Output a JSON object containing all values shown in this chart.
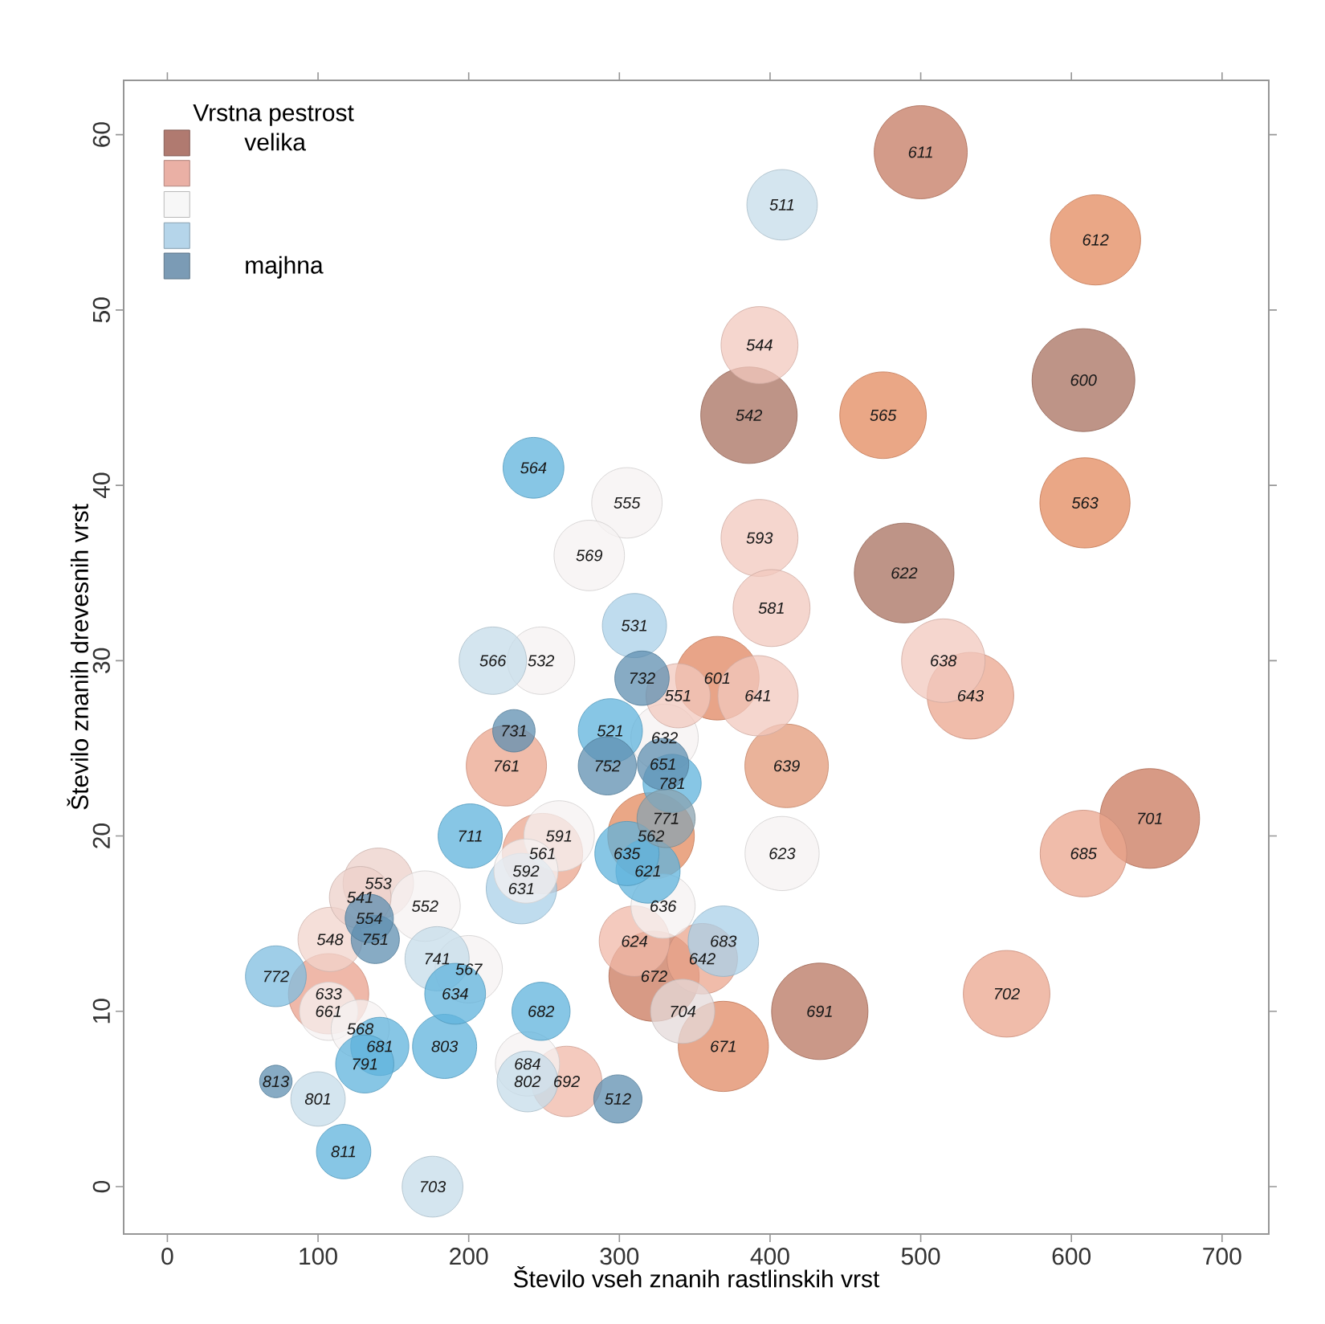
{
  "chart_data": {
    "type": "bubble",
    "xlabel": "Število vseh znanih rastlinskih vrst",
    "ylabel": "Število znanih drevesnih vrst",
    "legend_title": "Vrstna pestrost",
    "legend": "top left",
    "xlim": [
      -29,
      731
    ],
    "ylim": [
      -2.7,
      63.1
    ],
    "xticks": [
      0,
      100,
      200,
      300,
      400,
      500,
      600,
      700
    ],
    "yticks": [
      0,
      10,
      20,
      30,
      40,
      50,
      60
    ],
    "series": [
      {
        "name": "velika",
        "color": "#b07a70",
        "x": [
          500,
          616,
          386,
          475,
          608,
          609,
          489,
          365,
          652,
          433,
          369,
          323,
          321,
          411
        ],
        "values": [
          59,
          54,
          44,
          44,
          46,
          39,
          35,
          29,
          21,
          10,
          8,
          12,
          20,
          24
        ],
        "sizes": [
          0.82,
          0.77,
          0.88,
          0.71,
          1.0,
          0.77,
          0.94,
          0.66,
          0.94,
          0.88,
          0.77,
          0.77,
          0.71,
          0.66
        ],
        "colors": [
          "#c47a62",
          "#e38a5e",
          "#a8705f",
          "#e38a5e",
          "#a8705f",
          "#e38a5e",
          "#a8705f",
          "#e08660",
          "#c9785c",
          "#b87560",
          "#e08a64",
          "#c9785c",
          "#e38a5e",
          "#e39a78"
        ]
      },
      {
        "color": "#eab0a5",
        "x": [
          533,
          608,
          557,
          225,
          249,
          107,
          355,
          310,
          265,
          393,
          393,
          401,
          515,
          392,
          140,
          108,
          128,
          339
        ],
        "values": [
          28,
          19,
          11,
          24,
          19,
          11,
          13,
          14,
          6,
          48,
          37,
          33,
          30,
          28,
          17.3,
          14.1,
          16.5,
          28
        ],
        "sizes": [
          0.71,
          0.71,
          0.71,
          0.61,
          0.61,
          0.61,
          0.47,
          0.47,
          0.47,
          0.56,
          0.56,
          0.56,
          0.66,
          0.61,
          0.47,
          0.39,
          0.36,
          0.39
        ],
        "colors": [
          "#eba58e",
          "#eba58e",
          "#eba58e",
          "#eba58e",
          "#eba58e",
          "#e9a08c",
          "#eba58e",
          "#f0b8a8",
          "#f0b8a8",
          "#f2c8bd",
          "#f2c8bd",
          "#f2c8bd",
          "#f2c8bd",
          "#f2c8bd",
          "#ecd0ca",
          "#f2d4cc",
          "#ecd0ca",
          "#f2c8bd"
        ]
      },
      {
        "color": "#f7f7f7",
        "x": [
          305,
          280,
          248,
          330,
          408,
          329,
          171,
          200,
          260,
          238,
          107,
          128,
          239,
          342
        ],
        "values": [
          39,
          36,
          30,
          25.6,
          19,
          16,
          16,
          12.4,
          20,
          18,
          10,
          9,
          7,
          10
        ],
        "sizes": [
          0.47,
          0.47,
          0.43,
          0.43,
          0.52,
          0.39,
          0.47,
          0.43,
          0.47,
          0.39,
          0.32,
          0.32,
          0.39,
          0.39
        ],
        "colors": [
          "#f5f2f2",
          "#f5f2f2",
          "#f5f2f2",
          "#f5f2f2",
          "#f5f2f2",
          "#f5f2f2",
          "#f5f2f2",
          "#f5f2f2",
          "#f5f2f2",
          "#f5f2f2",
          "#f5f2f2",
          "#f5f2f2",
          "#f5f2f2",
          "#e4dada"
        ]
      },
      {
        "color": "#b5d5ea",
        "x": [
          408,
          216,
          310,
          369,
          179,
          100,
          176,
          235,
          239,
          243,
          294,
          201,
          319,
          305,
          191,
          184,
          248,
          72,
          141,
          131,
          117,
          335
        ],
        "values": [
          56,
          30,
          32,
          14,
          13,
          5,
          0,
          17,
          6,
          41,
          26,
          20,
          18,
          19,
          11,
          8,
          10,
          12,
          8,
          7,
          2,
          23
        ],
        "sizes": [
          0.47,
          0.43,
          0.39,
          0.47,
          0.39,
          0.28,
          0.35,
          0.47,
          0.35,
          0.35,
          0.39,
          0.39,
          0.39,
          0.39,
          0.35,
          0.39,
          0.32,
          0.35,
          0.32,
          0.32,
          0.28,
          0.32
        ],
        "colors": [
          "#c6dcea",
          "#c6dcea",
          "#a9d0e8",
          "#a9d0e8",
          "#c6dcea",
          "#c6dcea",
          "#c6dcea",
          "#a9d0e8",
          "#c6dcea",
          "#5fb3dc",
          "#5fb3dc",
          "#5fb3dc",
          "#5fb3dc",
          "#5fb3dc",
          "#5fb3dc",
          "#5fb3dc",
          "#5fb3dc",
          "#7fbde0",
          "#5fb3dc",
          "#5fb3dc",
          "#5fb3dc",
          "#5fb3dc"
        ]
      },
      {
        "name": "majhna",
        "color": "#7b9bb5",
        "x": [
          230,
          292,
          315,
          138,
          72,
          299,
          331,
          329,
          134
        ],
        "values": [
          26,
          24,
          29,
          14.1,
          6,
          5,
          21,
          24.1,
          15.3
        ],
        "sizes": [
          0.17,
          0.32,
          0.28,
          0.22,
          0.1,
          0.22,
          0.32,
          0.25,
          0.22
        ],
        "colors": [
          "#5f8fb0",
          "#5f8fb0",
          "#5f8fb0",
          "#5f8fb0",
          "#5f8fb0",
          "#5f8fb0",
          "#8aa3b0",
          "#5f8fb0",
          "#5f8fb0"
        ]
      }
    ],
    "annotations": [
      {
        "text": "611",
        "x": 500,
        "y": 59
      },
      {
        "text": "612",
        "x": 616,
        "y": 54
      },
      {
        "text": "542",
        "x": 386,
        "y": 44
      },
      {
        "text": "565",
        "x": 475,
        "y": 44
      },
      {
        "text": "600",
        "x": 608,
        "y": 46
      },
      {
        "text": "563",
        "x": 609,
        "y": 39
      },
      {
        "text": "622",
        "x": 489,
        "y": 35
      },
      {
        "text": "601",
        "x": 365,
        "y": 29
      },
      {
        "text": "701",
        "x": 652,
        "y": 21
      },
      {
        "text": "691",
        "x": 433,
        "y": 10
      },
      {
        "text": "671",
        "x": 369,
        "y": 8
      },
      {
        "text": "672",
        "x": 323,
        "y": 12
      },
      {
        "text": "562",
        "x": 321,
        "y": 20
      },
      {
        "text": "639",
        "x": 411,
        "y": 24
      },
      {
        "text": "643",
        "x": 533,
        "y": 28
      },
      {
        "text": "685",
        "x": 608,
        "y": 19
      },
      {
        "text": "702",
        "x": 557,
        "y": 11
      },
      {
        "text": "761",
        "x": 225,
        "y": 24
      },
      {
        "text": "561",
        "x": 249,
        "y": 19
      },
      {
        "text": "633",
        "x": 107,
        "y": 11
      },
      {
        "text": "642",
        "x": 355,
        "y": 13
      },
      {
        "text": "624",
        "x": 310,
        "y": 14
      },
      {
        "text": "692",
        "x": 265,
        "y": 6
      },
      {
        "text": "544",
        "x": 393,
        "y": 48
      },
      {
        "text": "593",
        "x": 393,
        "y": 37
      },
      {
        "text": "581",
        "x": 401,
        "y": 33
      },
      {
        "text": "638",
        "x": 515,
        "y": 30
      },
      {
        "text": "641",
        "x": 392,
        "y": 28
      },
      {
        "text": "553",
        "x": 140,
        "y": 17.3
      },
      {
        "text": "548",
        "x": 108,
        "y": 14.1
      },
      {
        "text": "541",
        "x": 128,
        "y": 16.5
      },
      {
        "text": "551",
        "x": 339,
        "y": 28
      },
      {
        "text": "555",
        "x": 305,
        "y": 39
      },
      {
        "text": "569",
        "x": 280,
        "y": 36
      },
      {
        "text": "532",
        "x": 248,
        "y": 30
      },
      {
        "text": "632",
        "x": 330,
        "y": 25.6
      },
      {
        "text": "623",
        "x": 408,
        "y": 19
      },
      {
        "text": "636",
        "x": 329,
        "y": 16
      },
      {
        "text": "552",
        "x": 171,
        "y": 16
      },
      {
        "text": "567",
        "x": 200,
        "y": 12.4
      },
      {
        "text": "591",
        "x": 260,
        "y": 20
      },
      {
        "text": "592",
        "x": 238,
        "y": 18
      },
      {
        "text": "661",
        "x": 107,
        "y": 10
      },
      {
        "text": "568",
        "x": 128,
        "y": 9
      },
      {
        "text": "684",
        "x": 239,
        "y": 7
      },
      {
        "text": "704",
        "x": 342,
        "y": 10
      },
      {
        "text": "511",
        "x": 408,
        "y": 56
      },
      {
        "text": "566",
        "x": 216,
        "y": 30
      },
      {
        "text": "531",
        "x": 310,
        "y": 32
      },
      {
        "text": "683",
        "x": 369,
        "y": 14
      },
      {
        "text": "741",
        "x": 179,
        "y": 13
      },
      {
        "text": "801",
        "x": 100,
        "y": 5
      },
      {
        "text": "703",
        "x": 176,
        "y": 0
      },
      {
        "text": "631",
        "x": 235,
        "y": 17
      },
      {
        "text": "802",
        "x": 239,
        "y": 6
      },
      {
        "text": "564",
        "x": 243,
        "y": 41
      },
      {
        "text": "521",
        "x": 294,
        "y": 26
      },
      {
        "text": "711",
        "x": 201,
        "y": 20
      },
      {
        "text": "621",
        "x": 319,
        "y": 18
      },
      {
        "text": "635",
        "x": 305,
        "y": 19
      },
      {
        "text": "634",
        "x": 191,
        "y": 11
      },
      {
        "text": "803",
        "x": 184,
        "y": 8
      },
      {
        "text": "682",
        "x": 248,
        "y": 10
      },
      {
        "text": "772",
        "x": 72,
        "y": 12
      },
      {
        "text": "681",
        "x": 141,
        "y": 8
      },
      {
        "text": "791",
        "x": 131,
        "y": 7
      },
      {
        "text": "811",
        "x": 117,
        "y": 2
      },
      {
        "text": "781",
        "x": 335,
        "y": 23
      },
      {
        "text": "731",
        "x": 230,
        "y": 26
      },
      {
        "text": "752",
        "x": 292,
        "y": 24
      },
      {
        "text": "732",
        "x": 315,
        "y": 29
      },
      {
        "text": "751",
        "x": 138,
        "y": 14.1
      },
      {
        "text": "813",
        "x": 72,
        "y": 6
      },
      {
        "text": "512",
        "x": 299,
        "y": 5
      },
      {
        "text": "771",
        "x": 331,
        "y": 21
      },
      {
        "text": "651",
        "x": 329,
        "y": 24.1
      },
      {
        "text": "554",
        "x": 134,
        "y": 15.3
      }
    ]
  }
}
